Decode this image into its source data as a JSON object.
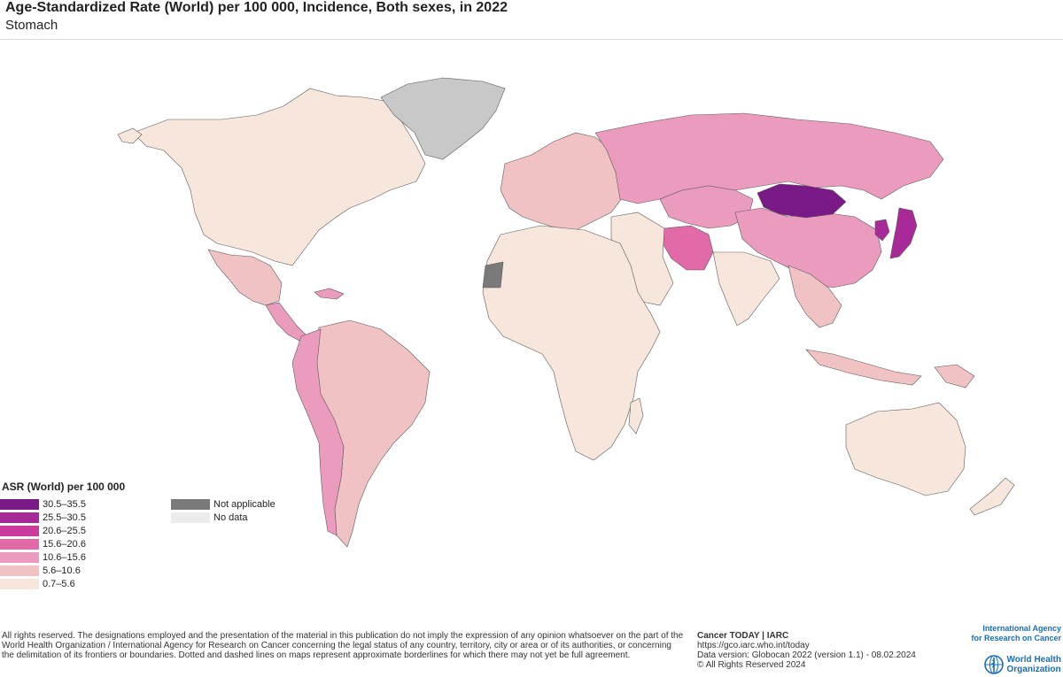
{
  "header": {
    "title": "Age-Standardized Rate (World) per 100 000, Incidence, Both sexes, in 2022",
    "subtitle": "Stomach"
  },
  "colors": {
    "land_bg": "#f7e6dc",
    "border": "#5a5a5a",
    "not_applicable": "#7a7a7a",
    "no_data": "#ececec",
    "greenland": "#c8c8c8",
    "ocean": "#ffffff"
  },
  "legend": {
    "title": "ASR (World) per 100 000",
    "classes": [
      {
        "label": "30.5–35.5",
        "color": "#7a1a86"
      },
      {
        "label": "25.5–30.5",
        "color": "#a82a98"
      },
      {
        "label": "20.6–25.5",
        "color": "#cc3a9e"
      },
      {
        "label": "15.6–20.6",
        "color": "#e26aa8"
      },
      {
        "label": "10.6–15.6",
        "color": "#eb9bbd"
      },
      {
        "label": "5.6–10.6",
        "color": "#f1c2c4"
      },
      {
        "label": "0.7–5.6",
        "color": "#f7e6dc"
      }
    ],
    "extra": [
      {
        "label": "Not applicable",
        "color": "#7a7a7a"
      },
      {
        "label": "No data",
        "color": "#ececec"
      }
    ]
  },
  "map_regions": [
    {
      "name": "north-america",
      "cls": 6
    },
    {
      "name": "greenland",
      "cls": "na-grey"
    },
    {
      "name": "mexico",
      "cls": 5
    },
    {
      "name": "central-america",
      "cls": 4
    },
    {
      "name": "south-america-east",
      "cls": 5
    },
    {
      "name": "south-america-west",
      "cls": 4
    },
    {
      "name": "europe",
      "cls": 5
    },
    {
      "name": "russia",
      "cls": 4
    },
    {
      "name": "central-asia",
      "cls": 4
    },
    {
      "name": "mongolia",
      "cls": 0
    },
    {
      "name": "china",
      "cls": 4
    },
    {
      "name": "japan-korea",
      "cls": 1
    },
    {
      "name": "iran",
      "cls": 3
    },
    {
      "name": "africa",
      "cls": 6
    },
    {
      "name": "middle-east",
      "cls": 6
    },
    {
      "name": "india",
      "cls": 6
    },
    {
      "name": "southeast-asia",
      "cls": 5
    },
    {
      "name": "australia",
      "cls": 6
    }
  ],
  "footer": {
    "disclaimer": "All rights reserved. The designations employed and the presentation of the material in this publication do not imply the expression of any opinion whatsoever on the part of the World Health Organization / International Agency for Research on Cancer concerning the legal status of any country, territory, city or area or of its authorities, or concerning the delimitation of its frontiers or boundaries. Dotted and dashed lines on maps represent approximate borderlines for which there may not yet be full agreement.",
    "source_brand": "Cancer TODAY | IARC",
    "source_url": "https://gco.iarc.who.int/today",
    "data_version": "Data version: Globocan 2022 (version 1.1) - 08.02.2024",
    "copyright": "© All Rights Reserved 2024"
  },
  "logos": {
    "iarc_line1": "International Agency",
    "iarc_line2": "for Research on Cancer",
    "who_line1": "World Health",
    "who_line2": "Organization"
  }
}
